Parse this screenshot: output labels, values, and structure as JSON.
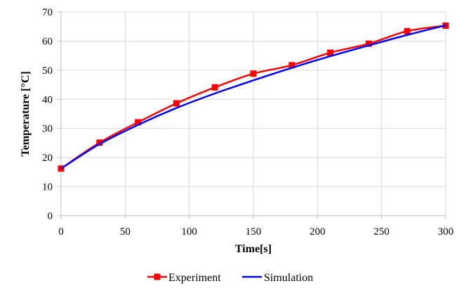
{
  "chart_data": {
    "type": "line",
    "xlabel": "Time[s]",
    "ylabel": "Temperature [°C]",
    "xlim": [
      0,
      300
    ],
    "ylim": [
      0,
      70
    ],
    "x_ticks": [
      "0",
      "50",
      "100",
      "150",
      "200",
      "250",
      "300"
    ],
    "y_ticks": [
      "0",
      "10",
      "20",
      "30",
      "40",
      "50",
      "60",
      "70"
    ],
    "grid": true,
    "legend_position": "bottom",
    "series": [
      {
        "name": "Experiment",
        "color": "#ff0000",
        "marker": "square",
        "x": [
          0,
          30,
          60,
          90,
          120,
          150,
          180,
          210,
          240,
          270,
          300
        ],
        "y": [
          16.2,
          25.1,
          32.1,
          38.6,
          44.1,
          48.8,
          51.7,
          56.0,
          59.1,
          63.4,
          65.3
        ]
      },
      {
        "name": "Simulation",
        "color": "#0000ff",
        "marker": "none",
        "x": [
          0,
          30,
          60,
          90,
          120,
          150,
          180,
          210,
          240,
          270,
          300
        ],
        "y": [
          16.2,
          24.6,
          31.2,
          37.0,
          42.0,
          46.5,
          50.8,
          54.8,
          58.5,
          62.1,
          65.4
        ]
      }
    ]
  }
}
